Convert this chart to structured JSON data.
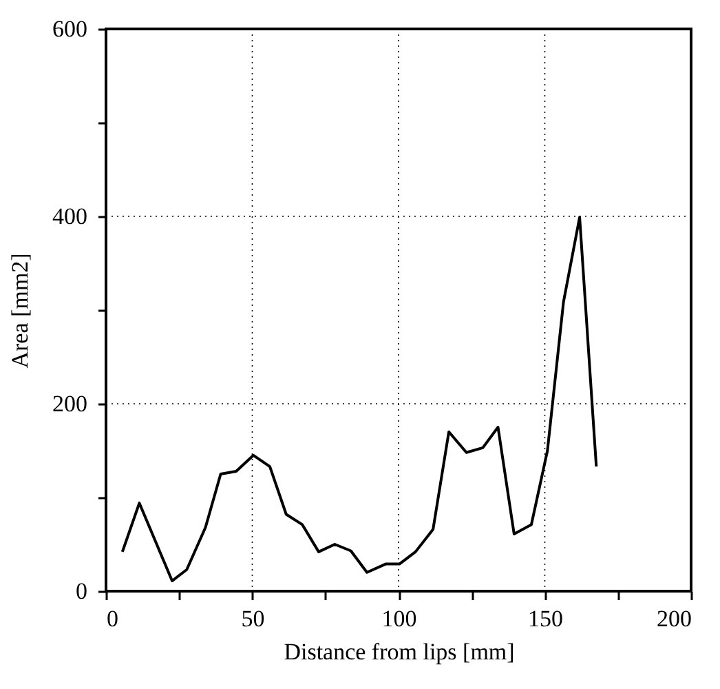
{
  "chart_data": {
    "type": "line",
    "xlabel": "Distance from lips [mm]",
    "ylabel": "Area [mm2]",
    "x": [
      5.6,
      11.4,
      22.6,
      27.6,
      34,
      39.2,
      44.5,
      50.4,
      56,
      61.6,
      67.1,
      72.7,
      78.2,
      83.7,
      89.2,
      95.6,
      100.3,
      105.8,
      111.8,
      117.2,
      123.2,
      128.8,
      134,
      139.5,
      145.4,
      150.9,
      156.4,
      161.9,
      167.6
    ],
    "series": [
      {
        "color": "#000000",
        "values": [
          42,
          94,
          11,
          23,
          68,
          125,
          128,
          145,
          133,
          82,
          71,
          42,
          50,
          43,
          20,
          29,
          29,
          42,
          66,
          170,
          148,
          153,
          175,
          61,
          71,
          150,
          309,
          399,
          133
        ]
      }
    ],
    "xlim": [
      0,
      200
    ],
    "xticks": [
      0,
      {
        "value": 25,
        "label": null
      },
      50,
      {
        "value": 75,
        "label": null
      },
      100,
      {
        "value": 125,
        "label": null
      },
      150,
      {
        "value": 175,
        "label": null
      },
      200
    ],
    "ylim": [
      0,
      600
    ],
    "yticks": [
      0,
      {
        "value": 100,
        "label": null
      },
      200,
      {
        "value": 300,
        "label": null
      },
      400,
      {
        "value": 500,
        "label": null
      },
      600
    ],
    "grid": true,
    "marker": "none",
    "line_style": "solid",
    "legend": false
  }
}
